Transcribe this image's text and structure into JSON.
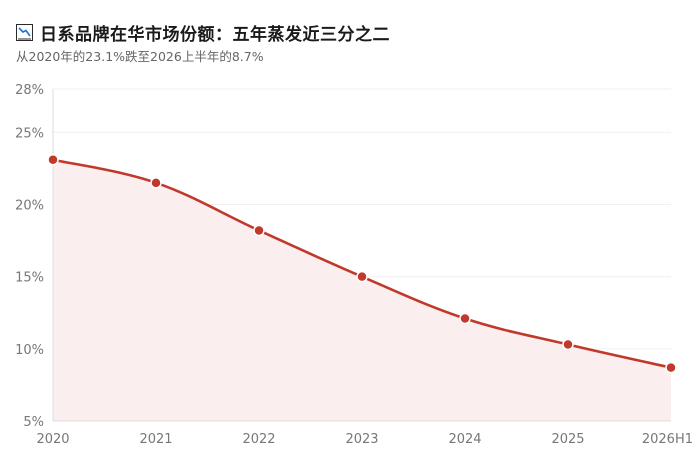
{
  "header": {
    "icon": "chart-decreasing-icon",
    "title": "日系品牌在华市场份额：五年蒸发近三分之二",
    "subtitle": "从2020年的23.1%跌至2026上半年的8.7%"
  },
  "chart_data": {
    "type": "line",
    "title": "日系品牌在华市场份额：五年蒸发近三分之二",
    "subtitle": "从2020年的23.1%跌至2026上半年的8.7%",
    "xlabel": "",
    "ylabel": "",
    "categories": [
      "2020",
      "2021",
      "2022",
      "2023",
      "2024",
      "2025",
      "2026H1"
    ],
    "series": [
      {
        "values": [
          23.1,
          21.5,
          18.2,
          15.0,
          12.1,
          10.3,
          8.7
        ]
      }
    ],
    "ylim": [
      5,
      28
    ],
    "yticks": [
      "5%",
      "10%",
      "15%",
      "20%",
      "25%",
      "28%"
    ],
    "ytick_values": [
      5,
      10,
      15,
      20,
      25,
      28
    ],
    "grid": true,
    "legend": "none",
    "colors": {
      "line": "#c0392b",
      "area": "#fbeeee",
      "grid": "#f0f0f0",
      "axis": "#dddddd"
    }
  }
}
